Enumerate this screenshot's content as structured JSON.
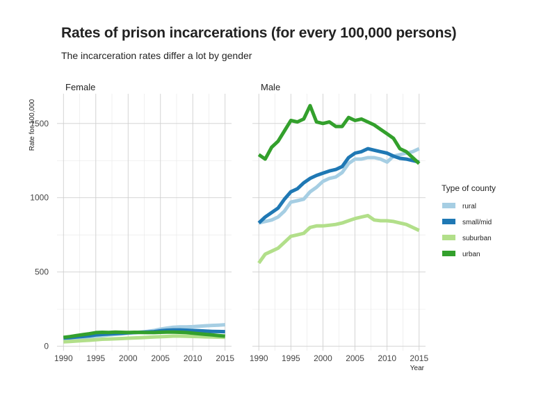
{
  "title": "Rates of prison incarcerations (for every 100,000 persons)",
  "subtitle": "The incarceration rates differ a lot by gender",
  "chart_data": {
    "type": "line",
    "xlabel": "Year",
    "ylabel": "Rate for 100,000",
    "xlim": [
      1989,
      2016
    ],
    "ylim": [
      -30,
      1700
    ],
    "x_ticks": [
      1990,
      1995,
      2000,
      2005,
      2010,
      2015
    ],
    "y_ticks": [
      0,
      500,
      1000,
      1500
    ],
    "grid": true,
    "legend": {
      "title": "Type of county",
      "position": "right",
      "entries": [
        {
          "name": "rural",
          "color": "#a6cee3"
        },
        {
          "name": "small/mid",
          "color": "#1f78b4"
        },
        {
          "name": "suburban",
          "color": "#b2df8a"
        },
        {
          "name": "urban",
          "color": "#33a02c"
        }
      ]
    },
    "x": [
      1990,
      1991,
      1992,
      1993,
      1994,
      1995,
      1996,
      1997,
      1998,
      1999,
      2000,
      2001,
      2002,
      2003,
      2004,
      2005,
      2006,
      2007,
      2008,
      2009,
      2010,
      2011,
      2012,
      2013,
      2014,
      2015
    ],
    "panels": [
      {
        "name": "Female",
        "series": [
          {
            "name": "rural",
            "values": [
              50,
              52,
              55,
              58,
              62,
              68,
              72,
              76,
              80,
              84,
              88,
              92,
              96,
              100,
              106,
              115,
              122,
              128,
              130,
              130,
              132,
              135,
              138,
              140,
              142,
              145
            ]
          },
          {
            "name": "small/mid",
            "values": [
              55,
              58,
              62,
              66,
              70,
              76,
              80,
              82,
              85,
              87,
              90,
              92,
              94,
              96,
              98,
              104,
              108,
              110,
              110,
              108,
              106,
              104,
              102,
              100,
              99,
              98
            ]
          },
          {
            "name": "suburban",
            "values": [
              30,
              32,
              35,
              38,
              40,
              44,
              47,
              48,
              50,
              52,
              54,
              56,
              58,
              60,
              62,
              64,
              66,
              68,
              68,
              67,
              66,
              65,
              63,
              62,
              61,
              60
            ]
          },
          {
            "name": "urban",
            "values": [
              60,
              65,
              72,
              78,
              84,
              92,
              94,
              93,
              95,
              94,
              93,
              94,
              93,
              92,
              92,
              94,
              95,
              95,
              94,
              92,
              88,
              84,
              80,
              76,
              72,
              68
            ]
          }
        ]
      },
      {
        "name": "Male",
        "series": [
          {
            "name": "rural",
            "values": [
              830,
              840,
              850,
              870,
              910,
              970,
              980,
              990,
              1040,
              1070,
              1110,
              1130,
              1140,
              1170,
              1230,
              1260,
              1260,
              1270,
              1270,
              1260,
              1240,
              1280,
              1290,
              1300,
              1310,
              1330
            ]
          },
          {
            "name": "small/mid",
            "values": [
              830,
              870,
              900,
              930,
              990,
              1040,
              1060,
              1100,
              1130,
              1150,
              1165,
              1180,
              1190,
              1210,
              1270,
              1300,
              1310,
              1330,
              1320,
              1310,
              1300,
              1280,
              1265,
              1260,
              1250,
              1240
            ]
          },
          {
            "name": "suburban",
            "values": [
              560,
              620,
              640,
              660,
              700,
              740,
              750,
              760,
              800,
              810,
              810,
              815,
              820,
              830,
              845,
              860,
              870,
              880,
              850,
              845,
              845,
              840,
              830,
              820,
              800,
              780
            ]
          },
          {
            "name": "urban",
            "values": [
              1290,
              1260,
              1340,
              1380,
              1450,
              1520,
              1510,
              1530,
              1620,
              1510,
              1500,
              1510,
              1480,
              1480,
              1540,
              1520,
              1530,
              1510,
              1490,
              1460,
              1430,
              1400,
              1330,
              1310,
              1270,
              1230
            ]
          }
        ]
      }
    ]
  }
}
